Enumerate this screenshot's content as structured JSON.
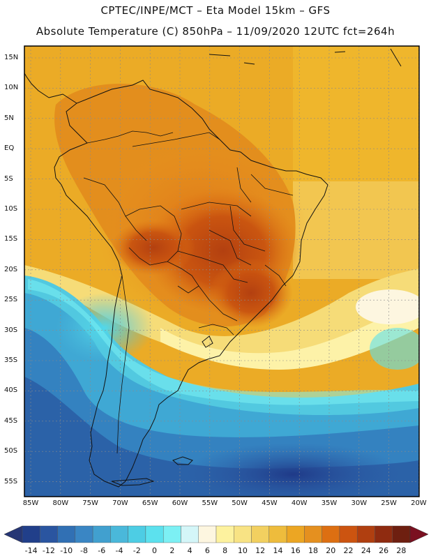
{
  "header": {
    "line1": "CPTEC/INPE/MCT –  Eta Model 15km – GFS",
    "line2": "Absolute Temperature (C) 850hPa – 11/09/2020 12UTC fct=264h"
  },
  "map": {
    "variable": "Absolute Temperature (C) 850hPa",
    "lat_labels": [
      "15N",
      "10N",
      "5N",
      "EQ",
      "5S",
      "10S",
      "15S",
      "20S",
      "25S",
      "30S",
      "35S",
      "40S",
      "45S",
      "50S",
      "55S"
    ],
    "lon_labels": [
      "85W",
      "80W",
      "75W",
      "70W",
      "65W",
      "60W",
      "55W",
      "50W",
      "45W",
      "40W",
      "35W",
      "30W",
      "25W",
      "20W"
    ]
  },
  "colorbar": {
    "labels": [
      "-14",
      "-12",
      "-10",
      "-8",
      "-6",
      "-4",
      "-2",
      "0",
      "2",
      "4",
      "6",
      "8",
      "10",
      "12",
      "14",
      "16",
      "18",
      "20",
      "22",
      "24",
      "26",
      "28"
    ],
    "colors": [
      "#213f8a",
      "#2a55a0",
      "#3170b4",
      "#3a86c4",
      "#41a0cf",
      "#4ab8da",
      "#4dcde4",
      "#5ce1ee",
      "#7cf0f4",
      "#d4f6f8",
      "#fdf6e0",
      "#fdf29e",
      "#f8e384",
      "#f2d060",
      "#eebc3c",
      "#eca623",
      "#e5901f",
      "#dd6f12",
      "#cc5410",
      "#b03f10",
      "#8f2b10",
      "#6e1f10"
    ],
    "under_color": "#263675",
    "over_color": "#7a1020"
  }
}
